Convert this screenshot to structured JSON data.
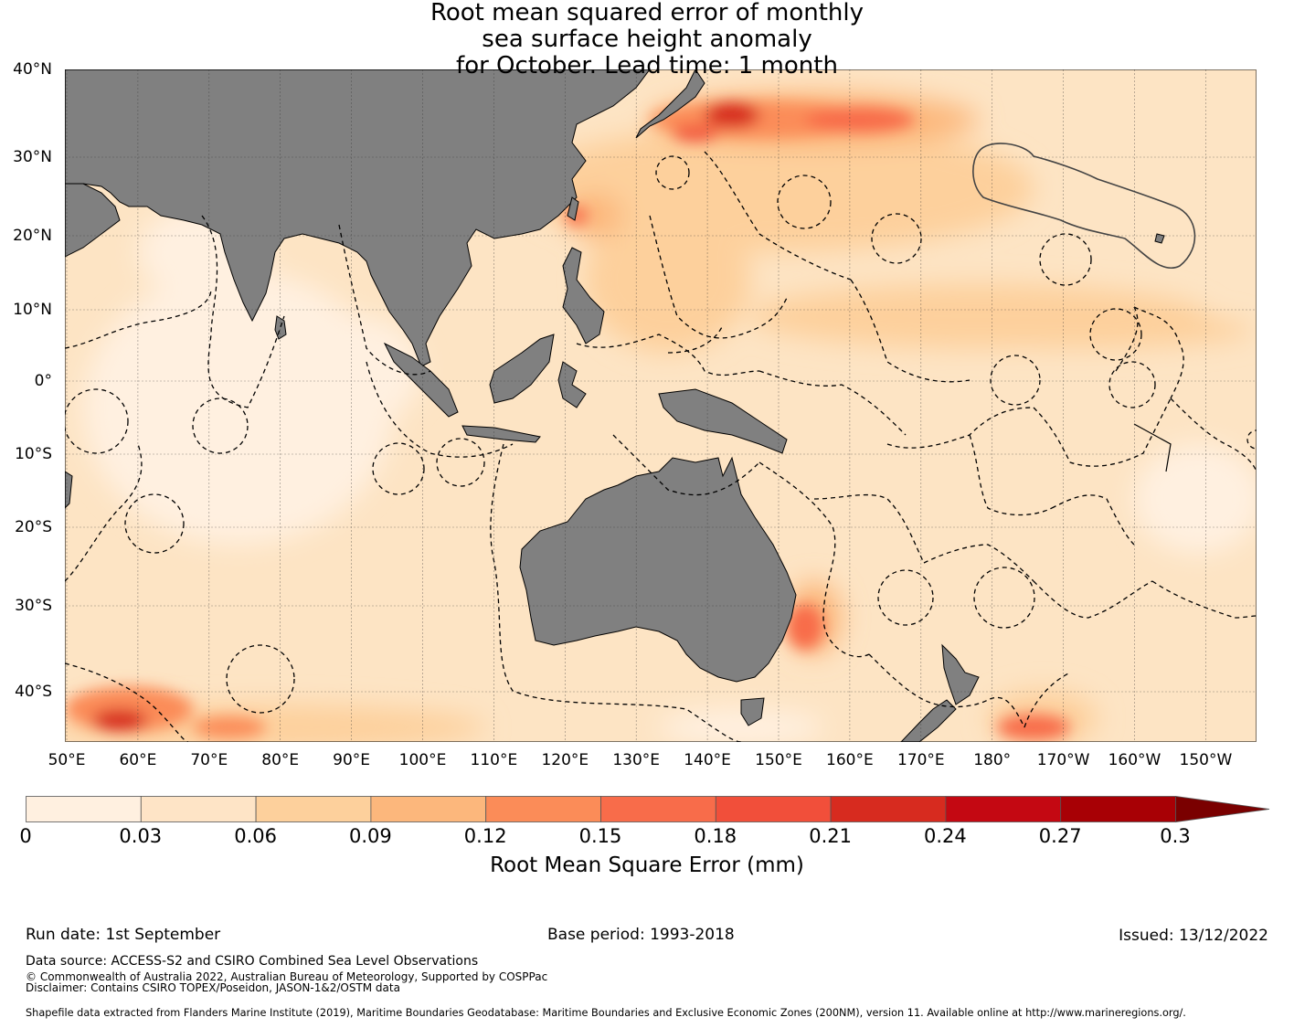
{
  "title": {
    "line1": "Root mean squared error of monthly",
    "line2": "sea surface height anomaly",
    "line3": "for October. Lead time: 1 month"
  },
  "map": {
    "lat_labels": [
      "40°N",
      "30°N",
      "20°N",
      "10°N",
      "0°",
      "10°S",
      "20°S",
      "30°S",
      "40°S"
    ],
    "lon_labels": [
      "50°E",
      "60°E",
      "70°E",
      "80°E",
      "90°E",
      "100°E",
      "110°E",
      "120°E",
      "130°E",
      "140°E",
      "150°E",
      "160°E",
      "170°E",
      "180°",
      "170°W",
      "160°W",
      "150°W"
    ],
    "land_color": "#808080",
    "ocean_base_color": "#fde4c4"
  },
  "colorbar": {
    "label": "Root Mean Square Error (mm)",
    "ticks": [
      "0",
      "0.03",
      "0.06",
      "0.09",
      "0.12",
      "0.15",
      "0.18",
      "0.21",
      "0.24",
      "0.27",
      "0.3"
    ],
    "colors": [
      "#fff0e0",
      "#fee4c6",
      "#fdd09c",
      "#fcb77c",
      "#fb8c58",
      "#f86c4a",
      "#f14f3a",
      "#d72b1f",
      "#c40812",
      "#a80005"
    ],
    "extend_color": "#7a0000"
  },
  "footer": {
    "run_date": "Run date: 1st September",
    "base_period": "Base period: 1993-2018",
    "issued": "Issued: 13/12/2022",
    "data_source": "Data source: ACCESS-S2 and CSIRO Combined Sea Level Observations",
    "copyright": "© Commonwealth of Australia 2022, Australian Bureau of Meteorology, Supported by COSPPac",
    "disclaimer": "Disclaimer: Contains CSIRO TOPEX/Poseidon, JASON-1&2/OSTM data",
    "shapefile": "Shapefile data extracted from Flanders Marine Institute (2019), Maritime Boundaries Geodatabase: Maritime Boundaries and Exclusive Economic Zones (200NM), version 11. Available online at http://www.marineregions.org/."
  }
}
